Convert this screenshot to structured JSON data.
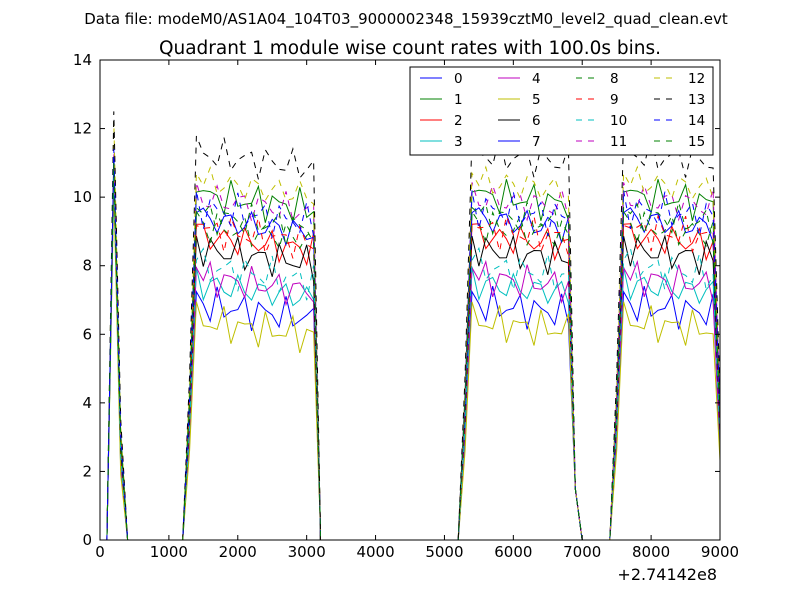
{
  "page": {
    "suptitle": "Data file: modeM0/AS1A04_104T03_9000002348_15939cztM0_level2_quad_clean.evt",
    "offset_label": "+2.74142e8"
  },
  "chart_data": {
    "type": "line",
    "title": "Quadrant 1 module wise count rates with 100.0s bins.",
    "xlabel": "",
    "ylabel": "",
    "xlim": [
      0,
      9000
    ],
    "ylim": [
      0,
      14
    ],
    "x_offset": 274142000,
    "xticks": [
      0,
      1000,
      2000,
      3000,
      4000,
      5000,
      6000,
      7000,
      8000,
      9000
    ],
    "yticks": [
      0,
      2,
      4,
      6,
      8,
      10,
      12,
      14
    ],
    "legend_position": "top-right",
    "legend_columns": 4,
    "segments": [
      {
        "start": 100,
        "bins": 3,
        "end_to_zero": 300
      },
      {
        "start": 1200,
        "bins": 20,
        "end_to_zero": 3200
      },
      {
        "start": 5200,
        "bins": 17,
        "end_to_zero": 7000
      },
      {
        "start": 7400,
        "bins": 16,
        "end_to_zero": 9000
      }
    ],
    "series": [
      {
        "name": "0",
        "color": "#0000ff",
        "dash": "solid",
        "level": 6.3,
        "spike": 10.8
      },
      {
        "name": "1",
        "color": "#008000",
        "dash": "solid",
        "level": 9.5,
        "spike": 11.2
      },
      {
        "name": "2",
        "color": "#ff0000",
        "dash": "solid",
        "level": 8.3,
        "spike": 10.9
      },
      {
        "name": "3",
        "color": "#00bfbf",
        "dash": "solid",
        "level": 6.9,
        "spike": 10.5
      },
      {
        "name": "4",
        "color": "#bf00bf",
        "dash": "solid",
        "level": 7.1,
        "spike": 10.6
      },
      {
        "name": "5",
        "color": "#bfbf00",
        "dash": "solid",
        "level": 5.8,
        "spike": 10.2
      },
      {
        "name": "6",
        "color": "#000000",
        "dash": "solid",
        "level": 7.9,
        "spike": 11.0
      },
      {
        "name": "7",
        "color": "#0000ff",
        "dash": "solid",
        "level": 8.8,
        "spike": 11.1
      },
      {
        "name": "8",
        "color": "#008000",
        "dash": "dashed",
        "level": 8.6,
        "spike": 10.9
      },
      {
        "name": "9",
        "color": "#ff0000",
        "dash": "dashed",
        "level": 8.5,
        "spike": 10.8
      },
      {
        "name": "10",
        "color": "#00bfbf",
        "dash": "dashed",
        "level": 7.4,
        "spike": 10.6
      },
      {
        "name": "11",
        "color": "#bf00bf",
        "dash": "dashed",
        "level": 9.4,
        "spike": 11.3
      },
      {
        "name": "12",
        "color": "#bfbf00",
        "dash": "dashed",
        "level": 9.9,
        "spike": 12.2
      },
      {
        "name": "13",
        "color": "#000000",
        "dash": "dashed",
        "level": 10.7,
        "spike": 12.5
      },
      {
        "name": "14",
        "color": "#0000ff",
        "dash": "dashed",
        "level": 9.1,
        "spike": 11.4
      },
      {
        "name": "15",
        "color": "#008000",
        "dash": "dashed",
        "level": 8.9,
        "spike": 11.0
      }
    ]
  }
}
